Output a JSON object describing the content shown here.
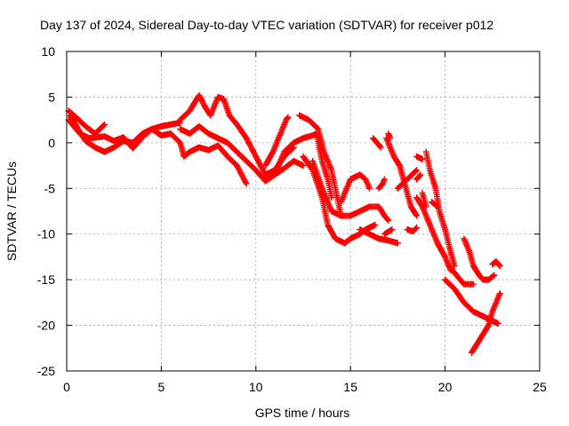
{
  "chart_data": {
    "type": "scatter",
    "title": "Day 137 of 2024, Sidereal Day-to-day VTEC variation (SDTVAR) for receiver p012",
    "xlabel": "GPS time / hours",
    "ylabel": "SDTVAR / TECUs",
    "xlim": [
      0,
      25
    ],
    "ylim": [
      -25,
      10
    ],
    "xticks": [
      "0",
      "5",
      "10",
      "15",
      "20",
      "25"
    ],
    "yticks": [
      "10",
      "5",
      "0",
      "-5",
      "-10",
      "-15",
      "-20",
      "-25"
    ],
    "grid": true,
    "marker": "plus",
    "color": "#ff0000",
    "series": [
      {
        "values": [
          [
            0.1,
            3.5
          ],
          [
            0.5,
            2.8
          ],
          [
            1.0,
            1.8
          ],
          [
            1.5,
            1.0
          ],
          [
            2.0,
            2.0
          ]
        ]
      },
      {
        "values": [
          [
            0.2,
            3.0
          ],
          [
            0.6,
            1.5
          ],
          [
            1.0,
            0.2
          ],
          [
            1.5,
            -0.5
          ],
          [
            2.0,
            -1.0
          ],
          [
            2.5,
            -0.5
          ],
          [
            3.0,
            0.2
          ],
          [
            3.5,
            0.0
          ],
          [
            4.0,
            1.0
          ],
          [
            4.5,
            1.5
          ],
          [
            5.0,
            1.8
          ],
          [
            5.5,
            2.0
          ],
          [
            6.0,
            2.2
          ]
        ]
      },
      {
        "values": [
          [
            0.1,
            2.5
          ],
          [
            0.7,
            1.0
          ],
          [
            1.2,
            0.5
          ],
          [
            2.0,
            0.7
          ],
          [
            2.5,
            0.2
          ],
          [
            3.0,
            0.6
          ],
          [
            3.5,
            -0.6
          ],
          [
            4.0,
            0.6
          ],
          [
            4.5,
            1.5
          ],
          [
            5.0,
            0.8
          ],
          [
            5.5,
            1.0
          ],
          [
            6.0,
            0.0
          ],
          [
            6.2,
            -1.5
          ],
          [
            6.5,
            -1.0
          ],
          [
            7.0,
            -0.5
          ],
          [
            7.5,
            -0.8
          ],
          [
            8.0,
            -0.3
          ],
          [
            8.5,
            -1.5
          ],
          [
            9.0,
            -2.5
          ],
          [
            9.5,
            -4.5
          ]
        ]
      },
      {
        "values": [
          [
            6.0,
            2.5
          ],
          [
            6.5,
            3.5
          ],
          [
            7.0,
            5.2
          ],
          [
            7.3,
            4.0
          ],
          [
            7.6,
            3.0
          ],
          [
            8.0,
            5.0
          ],
          [
            8.3,
            4.8
          ],
          [
            8.6,
            3.0
          ],
          [
            9.0,
            2.0
          ],
          [
            9.5,
            0.5
          ],
          [
            10.0,
            -1.5
          ],
          [
            10.5,
            -3.5
          ],
          [
            11.0,
            -3.0
          ],
          [
            11.5,
            -1.5
          ],
          [
            12.0,
            -0.5
          ]
        ]
      },
      {
        "values": [
          [
            6.0,
            1.5
          ],
          [
            6.5,
            1.0
          ],
          [
            7.0,
            1.8
          ],
          [
            7.5,
            1.0
          ],
          [
            8.0,
            0.5
          ],
          [
            8.5,
            0.0
          ],
          [
            9.0,
            -1.0
          ],
          [
            9.5,
            -2.0
          ],
          [
            10.0,
            -3.0
          ],
          [
            10.5,
            -4.2
          ],
          [
            11.0,
            -3.5
          ],
          [
            11.5,
            -2.8
          ],
          [
            12.0,
            -2.0
          ],
          [
            12.5,
            -2.5
          ]
        ]
      },
      {
        "values": [
          [
            10.5,
            -2.5
          ],
          [
            10.9,
            -1.0
          ],
          [
            11.3,
            1.0
          ],
          [
            11.6,
            2.5
          ],
          [
            11.7,
            2.8
          ]
        ]
      },
      {
        "values": [
          [
            11.0,
            -3.5
          ],
          [
            11.5,
            -1.0
          ],
          [
            12.0,
            0.0
          ],
          [
            12.5,
            0.5
          ],
          [
            13.0,
            0.8
          ],
          [
            13.2,
            1.0
          ],
          [
            13.5,
            -2.0
          ],
          [
            13.8,
            -4.0
          ],
          [
            14.0,
            -6.0
          ]
        ]
      },
      {
        "values": [
          [
            12.3,
            3.0
          ],
          [
            12.8,
            2.5
          ],
          [
            13.3,
            1.5
          ],
          [
            13.6,
            -1.0
          ],
          [
            14.0,
            -3.0
          ],
          [
            14.3,
            -6.0
          ],
          [
            14.5,
            -8.0
          ]
        ]
      },
      {
        "values": [
          [
            12.5,
            -1.5
          ],
          [
            13.0,
            -3.0
          ],
          [
            13.5,
            -6.0
          ],
          [
            13.8,
            -9.0
          ],
          [
            14.2,
            -10.5
          ],
          [
            14.7,
            -11.0
          ],
          [
            15.0,
            -10.5
          ],
          [
            15.5,
            -10.0
          ],
          [
            15.8,
            -9.5
          ],
          [
            16.0,
            -9.3
          ],
          [
            16.3,
            -9.0
          ]
        ]
      },
      {
        "values": [
          [
            13.0,
            -2.0
          ],
          [
            13.5,
            -5.0
          ],
          [
            14.0,
            -7.5
          ],
          [
            14.5,
            -8.0
          ],
          [
            15.0,
            -8.0
          ],
          [
            15.5,
            -7.5
          ],
          [
            16.0,
            -7.0
          ],
          [
            16.5,
            -7.0
          ],
          [
            16.8,
            -8.0
          ],
          [
            17.0,
            -8.5
          ]
        ]
      },
      {
        "values": [
          [
            14.5,
            -6.5
          ],
          [
            15.0,
            -4.0
          ],
          [
            15.5,
            -3.5
          ],
          [
            15.8,
            -4.0
          ],
          [
            16.0,
            -5.0
          ]
        ]
      },
      {
        "values": [
          [
            15.5,
            -9.5
          ],
          [
            16.0,
            -10.0
          ],
          [
            16.5,
            -10.5
          ],
          [
            17.0,
            -10.7
          ],
          [
            17.5,
            -11.0
          ]
        ]
      },
      {
        "values": [
          [
            16.5,
            -5.0
          ],
          [
            16.7,
            -4.5
          ],
          [
            16.8,
            -4.0
          ]
        ]
      },
      {
        "values": [
          [
            16.8,
            -10.0
          ],
          [
            17.2,
            -9.5
          ]
        ]
      },
      {
        "values": [
          [
            16.2,
            0.5
          ],
          [
            16.6,
            -0.5
          ]
        ]
      },
      {
        "values": [
          [
            16.9,
            0.5
          ],
          [
            17.3,
            -1.5
          ],
          [
            17.6,
            -2.5
          ],
          [
            17.8,
            -4.0
          ],
          [
            18.0,
            -5.5
          ],
          [
            18.2,
            -7.0
          ],
          [
            18.5,
            -8.0
          ]
        ]
      },
      {
        "values": [
          [
            17.0,
            1.0
          ],
          [
            17.1,
            0.5
          ]
        ]
      },
      {
        "values": [
          [
            17.5,
            -5.0
          ],
          [
            18.0,
            -4.0
          ],
          [
            18.5,
            -3.0
          ]
        ]
      },
      {
        "values": [
          [
            18.0,
            -9.5
          ],
          [
            18.3,
            -9.7
          ],
          [
            18.5,
            -9.3
          ]
        ]
      },
      {
        "values": [
          [
            18.5,
            -1.5
          ],
          [
            18.8,
            -1.8
          ]
        ]
      },
      {
        "values": [
          [
            18.5,
            -4.0
          ],
          [
            18.7,
            -3.5
          ]
        ]
      },
      {
        "values": [
          [
            18.8,
            -5.5
          ],
          [
            19.0,
            -7.0
          ]
        ]
      },
      {
        "values": [
          [
            18.5,
            -6.0
          ],
          [
            18.8,
            -7.0
          ],
          [
            19.2,
            -9.0
          ],
          [
            19.6,
            -11.0
          ],
          [
            20.0,
            -12.5
          ],
          [
            20.3,
            -14.0
          ]
        ]
      },
      {
        "values": [
          [
            19.0,
            -1.0
          ],
          [
            19.2,
            -3.0
          ],
          [
            19.5,
            -5.0
          ],
          [
            19.7,
            -7.5
          ],
          [
            20.0,
            -9.5
          ],
          [
            20.3,
            -12.0
          ],
          [
            20.5,
            -13.5
          ]
        ]
      },
      {
        "values": [
          [
            19.3,
            -6.5
          ],
          [
            19.6,
            -7.0
          ]
        ]
      },
      {
        "values": [
          [
            20.0,
            -15.0
          ],
          [
            20.5,
            -16.0
          ],
          [
            21.0,
            -17.5
          ],
          [
            21.5,
            -18.5
          ],
          [
            22.0,
            -19.0
          ],
          [
            22.5,
            -19.5
          ],
          [
            22.8,
            -19.8
          ]
        ]
      },
      {
        "values": [
          [
            20.2,
            -13.5
          ],
          [
            20.6,
            -14.5
          ],
          [
            21.0,
            -15.5
          ],
          [
            21.5,
            -15.5
          ]
        ]
      },
      {
        "values": [
          [
            21.0,
            -10.5
          ],
          [
            21.3,
            -12.0
          ],
          [
            21.5,
            -13.5
          ],
          [
            21.8,
            -14.5
          ],
          [
            22.0,
            -15.0
          ],
          [
            22.3,
            -15.0
          ],
          [
            22.6,
            -14.5
          ]
        ]
      },
      {
        "values": [
          [
            21.4,
            -23.0
          ],
          [
            21.7,
            -22.0
          ],
          [
            22.0,
            -21.0
          ],
          [
            22.3,
            -20.0
          ],
          [
            22.5,
            -18.5
          ],
          [
            22.7,
            -17.5
          ],
          [
            22.9,
            -16.5
          ]
        ]
      },
      {
        "values": [
          [
            22.5,
            -13.3
          ],
          [
            22.7,
            -13.0
          ],
          [
            22.9,
            -13.5
          ]
        ]
      }
    ]
  }
}
